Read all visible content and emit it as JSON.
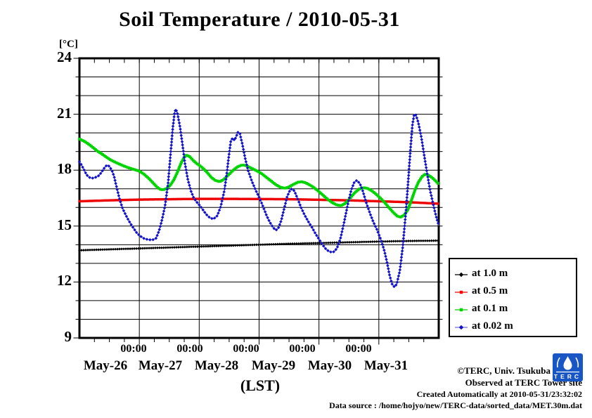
{
  "title": "Soil Temperature / 2010-05-31",
  "y_unit_label": "[°C]",
  "x_axis_label": "(LST)",
  "footer": {
    "credit": "©TERC, Univ. Tsukuba",
    "observed": "Observed at TERC Tower site",
    "created": "Created Automatically at 2010-05-31/23:32:02",
    "data_source": "Data source : /home/hojyo/new/TERC-data/sorted_data/MET.30m.dat",
    "logo_text": "TERC"
  },
  "chart_data": {
    "type": "line",
    "title": "Soil Temperature / 2010-05-31",
    "xlabel": "(LST)",
    "ylabel": "[°C]",
    "xlim_days": [
      0,
      6
    ],
    "ylim": [
      9,
      24
    ],
    "y_major_ticks": [
      24,
      21,
      18,
      15,
      12,
      9
    ],
    "y_gridline_step_c": 1,
    "x_minor_tick_hours": 6,
    "x_midnight_label": "00:00",
    "day_labels": [
      "May-26",
      "May-27",
      "May-28",
      "May-29",
      "May-30",
      "May-31"
    ],
    "grid": true,
    "legend_position": "outside-right-bottom",
    "series": [
      {
        "label": "at 1.0 m",
        "depth_m": 1.0,
        "color": "#000000",
        "line_color": "#000000",
        "line_width": 1.2,
        "marker": "diamond",
        "marker_size": 2.8,
        "marker_spacing_px": 3,
        "points": [
          [
            0.0,
            13.7
          ],
          [
            0.5,
            13.75
          ],
          [
            1.0,
            13.8
          ],
          [
            1.5,
            13.85
          ],
          [
            2.0,
            13.9
          ],
          [
            2.5,
            13.95
          ],
          [
            3.0,
            14.0
          ],
          [
            3.5,
            14.05
          ],
          [
            4.0,
            14.09
          ],
          [
            4.5,
            14.13
          ],
          [
            5.0,
            14.17
          ],
          [
            5.5,
            14.2
          ],
          [
            6.0,
            14.22
          ]
        ]
      },
      {
        "label": "at 0.5 m",
        "depth_m": 0.5,
        "color": "#ee0000",
        "line_color": "#ee0000",
        "line_width": 1.5,
        "marker": "square",
        "marker_size": 3.4,
        "marker_spacing_px": 2.5,
        "points": [
          [
            0.0,
            16.33
          ],
          [
            0.5,
            16.38
          ],
          [
            1.0,
            16.42
          ],
          [
            1.5,
            16.44
          ],
          [
            2.0,
            16.46
          ],
          [
            2.5,
            16.46
          ],
          [
            3.0,
            16.45
          ],
          [
            3.5,
            16.44
          ],
          [
            4.0,
            16.41
          ],
          [
            4.5,
            16.38
          ],
          [
            5.0,
            16.33
          ],
          [
            5.5,
            16.28
          ],
          [
            6.0,
            16.2
          ]
        ]
      },
      {
        "label": "at 0.1 m",
        "depth_m": 0.1,
        "color": "#00d400",
        "line_color": "#00d400",
        "line_width": 1.6,
        "marker": "square",
        "marker_size": 3.8,
        "marker_spacing_px": 2.5,
        "points": [
          [
            0.0,
            19.67
          ],
          [
            0.08,
            19.55
          ],
          [
            0.16,
            19.38
          ],
          [
            0.24,
            19.18
          ],
          [
            0.3,
            19.02
          ],
          [
            0.36,
            18.9
          ],
          [
            0.44,
            18.72
          ],
          [
            0.52,
            18.55
          ],
          [
            0.6,
            18.42
          ],
          [
            0.7,
            18.28
          ],
          [
            0.8,
            18.15
          ],
          [
            0.9,
            18.05
          ],
          [
            1.0,
            17.95
          ],
          [
            1.08,
            17.78
          ],
          [
            1.16,
            17.55
          ],
          [
            1.24,
            17.28
          ],
          [
            1.3,
            17.08
          ],
          [
            1.35,
            16.97
          ],
          [
            1.4,
            16.95
          ],
          [
            1.46,
            17.02
          ],
          [
            1.52,
            17.2
          ],
          [
            1.58,
            17.5
          ],
          [
            1.64,
            17.92
          ],
          [
            1.7,
            18.4
          ],
          [
            1.75,
            18.7
          ],
          [
            1.79,
            18.8
          ],
          [
            1.84,
            18.73
          ],
          [
            1.9,
            18.52
          ],
          [
            1.96,
            18.35
          ],
          [
            2.02,
            18.22
          ],
          [
            2.08,
            18.05
          ],
          [
            2.14,
            17.85
          ],
          [
            2.2,
            17.62
          ],
          [
            2.27,
            17.45
          ],
          [
            2.34,
            17.38
          ],
          [
            2.41,
            17.5
          ],
          [
            2.49,
            17.75
          ],
          [
            2.57,
            18.0
          ],
          [
            2.64,
            18.18
          ],
          [
            2.71,
            18.27
          ],
          [
            2.77,
            18.26
          ],
          [
            2.83,
            18.17
          ],
          [
            2.9,
            18.06
          ],
          [
            2.97,
            17.95
          ],
          [
            3.04,
            17.82
          ],
          [
            3.12,
            17.62
          ],
          [
            3.2,
            17.42
          ],
          [
            3.28,
            17.22
          ],
          [
            3.36,
            17.08
          ],
          [
            3.43,
            17.03
          ],
          [
            3.5,
            17.1
          ],
          [
            3.58,
            17.25
          ],
          [
            3.65,
            17.35
          ],
          [
            3.71,
            17.38
          ],
          [
            3.77,
            17.33
          ],
          [
            3.84,
            17.22
          ],
          [
            3.91,
            17.08
          ],
          [
            3.98,
            16.9
          ],
          [
            4.06,
            16.68
          ],
          [
            4.14,
            16.45
          ],
          [
            4.22,
            16.26
          ],
          [
            4.3,
            16.13
          ],
          [
            4.37,
            16.1
          ],
          [
            4.44,
            16.22
          ],
          [
            4.52,
            16.5
          ],
          [
            4.6,
            16.8
          ],
          [
            4.68,
            17.0
          ],
          [
            4.75,
            17.06
          ],
          [
            4.81,
            17.02
          ],
          [
            4.88,
            16.9
          ],
          [
            4.95,
            16.72
          ],
          [
            5.02,
            16.52
          ],
          [
            5.1,
            16.25
          ],
          [
            5.18,
            15.95
          ],
          [
            5.25,
            15.7
          ],
          [
            5.31,
            15.53
          ],
          [
            5.36,
            15.48
          ],
          [
            5.42,
            15.58
          ],
          [
            5.48,
            15.85
          ],
          [
            5.54,
            16.35
          ],
          [
            5.6,
            16.9
          ],
          [
            5.66,
            17.35
          ],
          [
            5.72,
            17.65
          ],
          [
            5.77,
            17.78
          ],
          [
            5.82,
            17.75
          ],
          [
            5.88,
            17.62
          ],
          [
            5.94,
            17.45
          ],
          [
            6.0,
            17.25
          ]
        ]
      },
      {
        "label": "at 0.02 m",
        "depth_m": 0.02,
        "color": "#1111cc",
        "line_color": "#7070d8",
        "line_width": 1.3,
        "marker": "diamond",
        "marker_size": 3.2,
        "marker_spacing_px": 4.5,
        "points": [
          [
            0.0,
            18.45
          ],
          [
            0.04,
            18.25
          ],
          [
            0.08,
            18.0
          ],
          [
            0.12,
            17.75
          ],
          [
            0.16,
            17.62
          ],
          [
            0.2,
            17.57
          ],
          [
            0.24,
            17.58
          ],
          [
            0.28,
            17.63
          ],
          [
            0.32,
            17.7
          ],
          [
            0.36,
            17.85
          ],
          [
            0.4,
            18.05
          ],
          [
            0.44,
            18.22
          ],
          [
            0.47,
            18.27
          ],
          [
            0.5,
            18.2
          ],
          [
            0.54,
            18.0
          ],
          [
            0.58,
            17.65
          ],
          [
            0.62,
            17.1
          ],
          [
            0.67,
            16.45
          ],
          [
            0.72,
            15.95
          ],
          [
            0.78,
            15.55
          ],
          [
            0.84,
            15.2
          ],
          [
            0.9,
            14.9
          ],
          [
            0.96,
            14.62
          ],
          [
            1.02,
            14.45
          ],
          [
            1.08,
            14.33
          ],
          [
            1.15,
            14.27
          ],
          [
            1.22,
            14.26
          ],
          [
            1.28,
            14.35
          ],
          [
            1.33,
            14.75
          ],
          [
            1.38,
            15.35
          ],
          [
            1.43,
            16.1
          ],
          [
            1.48,
            17.3
          ],
          [
            1.52,
            18.8
          ],
          [
            1.56,
            20.3
          ],
          [
            1.59,
            21.1
          ],
          [
            1.61,
            21.27
          ],
          [
            1.64,
            21.0
          ],
          [
            1.68,
            20.3
          ],
          [
            1.72,
            19.4
          ],
          [
            1.76,
            18.4
          ],
          [
            1.81,
            17.5
          ],
          [
            1.86,
            16.9
          ],
          [
            1.91,
            16.5
          ],
          [
            1.96,
            16.28
          ],
          [
            2.01,
            16.1
          ],
          [
            2.06,
            15.88
          ],
          [
            2.12,
            15.62
          ],
          [
            2.18,
            15.44
          ],
          [
            2.24,
            15.38
          ],
          [
            2.3,
            15.55
          ],
          [
            2.36,
            16.05
          ],
          [
            2.42,
            16.9
          ],
          [
            2.46,
            17.8
          ],
          [
            2.5,
            18.9
          ],
          [
            2.53,
            19.6
          ],
          [
            2.56,
            19.72
          ],
          [
            2.59,
            19.6
          ],
          [
            2.62,
            19.82
          ],
          [
            2.65,
            20.05
          ],
          [
            2.68,
            19.95
          ],
          [
            2.72,
            19.4
          ],
          [
            2.77,
            18.6
          ],
          [
            2.82,
            17.95
          ],
          [
            2.88,
            17.4
          ],
          [
            2.94,
            16.95
          ],
          [
            3.0,
            16.55
          ],
          [
            3.06,
            16.1
          ],
          [
            3.12,
            15.6
          ],
          [
            3.18,
            15.2
          ],
          [
            3.24,
            14.9
          ],
          [
            3.28,
            14.78
          ],
          [
            3.32,
            14.88
          ],
          [
            3.37,
            15.3
          ],
          [
            3.42,
            15.95
          ],
          [
            3.47,
            16.6
          ],
          [
            3.52,
            16.95
          ],
          [
            3.55,
            17.0
          ],
          [
            3.59,
            16.88
          ],
          [
            3.64,
            16.5
          ],
          [
            3.7,
            16.0
          ],
          [
            3.76,
            15.6
          ],
          [
            3.82,
            15.25
          ],
          [
            3.88,
            14.95
          ],
          [
            3.94,
            14.6
          ],
          [
            4.0,
            14.3
          ],
          [
            4.06,
            14.0
          ],
          [
            4.12,
            13.75
          ],
          [
            4.18,
            13.62
          ],
          [
            4.24,
            13.6
          ],
          [
            4.3,
            13.8
          ],
          [
            4.36,
            14.35
          ],
          [
            4.42,
            15.2
          ],
          [
            4.48,
            16.15
          ],
          [
            4.54,
            16.95
          ],
          [
            4.59,
            17.35
          ],
          [
            4.63,
            17.45
          ],
          [
            4.68,
            17.3
          ],
          [
            4.73,
            16.9
          ],
          [
            4.79,
            16.25
          ],
          [
            4.85,
            15.7
          ],
          [
            4.91,
            15.2
          ],
          [
            4.97,
            14.8
          ],
          [
            5.03,
            14.3
          ],
          [
            5.09,
            13.7
          ],
          [
            5.14,
            13.0
          ],
          [
            5.18,
            12.35
          ],
          [
            5.22,
            11.9
          ],
          [
            5.26,
            11.73
          ],
          [
            5.3,
            11.9
          ],
          [
            5.35,
            12.6
          ],
          [
            5.4,
            13.9
          ],
          [
            5.45,
            15.7
          ],
          [
            5.49,
            17.4
          ],
          [
            5.53,
            19.2
          ],
          [
            5.56,
            20.4
          ],
          [
            5.59,
            21.0
          ],
          [
            5.62,
            20.95
          ],
          [
            5.66,
            20.55
          ],
          [
            5.71,
            19.75
          ],
          [
            5.76,
            18.75
          ],
          [
            5.81,
            17.75
          ],
          [
            5.86,
            16.85
          ],
          [
            5.91,
            16.15
          ],
          [
            5.95,
            15.6
          ],
          [
            5.98,
            15.25
          ],
          [
            6.0,
            15.05
          ]
        ]
      }
    ]
  }
}
